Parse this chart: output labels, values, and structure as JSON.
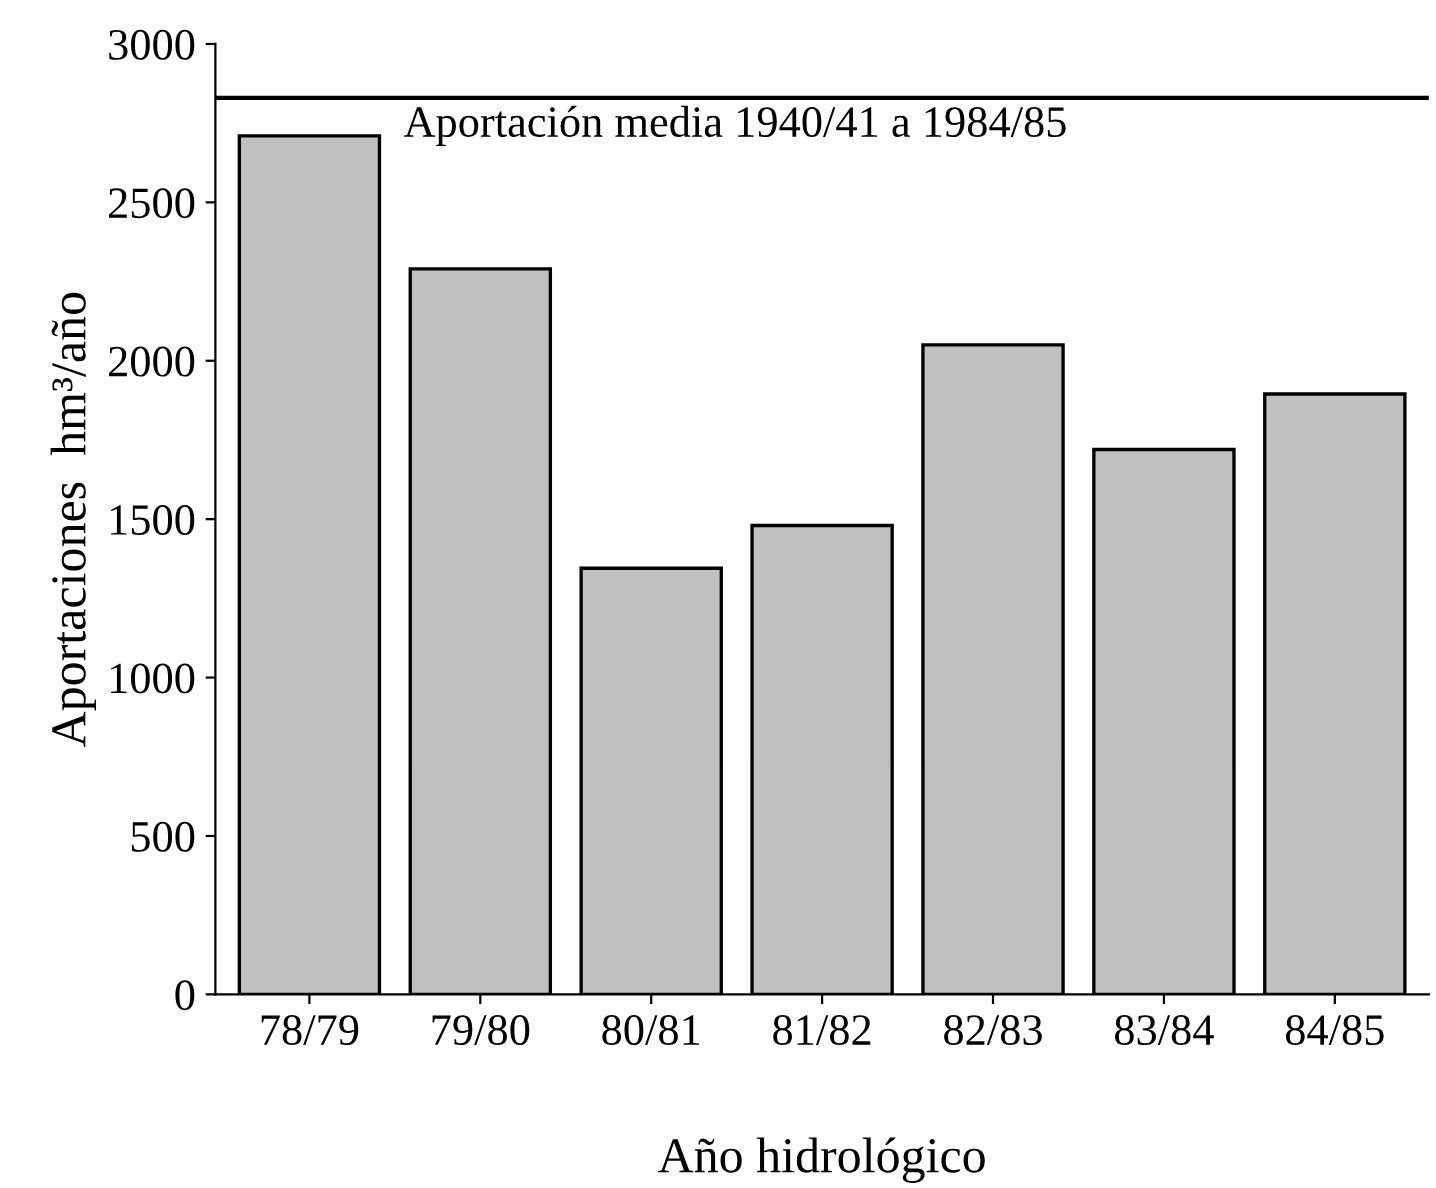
{
  "chart_data": {
    "type": "bar",
    "xlabel": "Año hidrológico",
    "ylabel": "Aportaciones  hm³/año",
    "categories": [
      "78/79",
      "79/80",
      "80/81",
      "81/82",
      "82/83",
      "83/84",
      "84/85"
    ],
    "values": [
      2710,
      2290,
      1345,
      1480,
      2050,
      1720,
      1895
    ],
    "color": "#c0c0c0",
    "ylim": [
      0,
      3000
    ],
    "yticks": [
      0,
      500,
      1000,
      1500,
      2000,
      2500,
      3000
    ],
    "grid": false,
    "legend": false,
    "ref_lines": [
      {
        "axis": "y",
        "value": 2830,
        "label": "Aportación media 1940/41 a 1984/85",
        "color": "#000000"
      }
    ]
  }
}
